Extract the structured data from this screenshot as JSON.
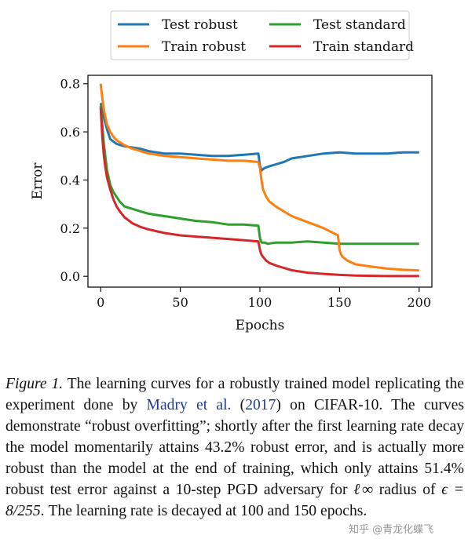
{
  "chart_data": {
    "type": "line",
    "xlabel": "Epochs",
    "ylabel": "Error",
    "xlim": [
      -8,
      208
    ],
    "ylim": [
      -0.045,
      0.835
    ],
    "xticks": [
      0,
      50,
      100,
      150,
      200
    ],
    "yticks": [
      0.0,
      0.2,
      0.4,
      0.6,
      0.8
    ],
    "xtick_labels": [
      "0",
      "50",
      "100",
      "150",
      "200"
    ],
    "ytick_labels": [
      "0.0",
      "0.2",
      "0.4",
      "0.6",
      "0.8"
    ],
    "grid": false,
    "legend": {
      "placement": "top-center-outside",
      "columns": 2
    },
    "series": [
      {
        "name": "Test robust",
        "color": "#1f77b4",
        "x": [
          0,
          2,
          4,
          6,
          8,
          10,
          15,
          20,
          25,
          30,
          35,
          40,
          45,
          50,
          60,
          70,
          80,
          90,
          99,
          100,
          101,
          103,
          105,
          110,
          115,
          120,
          130,
          140,
          150,
          160,
          170,
          180,
          190,
          200
        ],
        "y": [
          0.72,
          0.66,
          0.61,
          0.57,
          0.56,
          0.55,
          0.54,
          0.535,
          0.53,
          0.52,
          0.515,
          0.51,
          0.51,
          0.51,
          0.505,
          0.5,
          0.5,
          0.505,
          0.51,
          0.46,
          0.44,
          0.45,
          0.455,
          0.465,
          0.475,
          0.49,
          0.5,
          0.51,
          0.515,
          0.51,
          0.51,
          0.51,
          0.515,
          0.515
        ]
      },
      {
        "name": "Test standard",
        "color": "#2ca02c",
        "x": [
          0,
          2,
          4,
          6,
          8,
          10,
          12,
          15,
          20,
          25,
          30,
          35,
          40,
          45,
          50,
          60,
          70,
          80,
          90,
          99,
          100,
          101,
          103,
          105,
          110,
          120,
          130,
          140,
          150,
          160,
          170,
          180,
          190,
          200
        ],
        "y": [
          0.71,
          0.55,
          0.44,
          0.38,
          0.35,
          0.33,
          0.31,
          0.29,
          0.28,
          0.27,
          0.26,
          0.255,
          0.25,
          0.245,
          0.24,
          0.23,
          0.225,
          0.215,
          0.215,
          0.21,
          0.16,
          0.14,
          0.14,
          0.135,
          0.14,
          0.14,
          0.145,
          0.14,
          0.135,
          0.135,
          0.135,
          0.135,
          0.135,
          0.135
        ]
      },
      {
        "name": "Train robust",
        "color": "#ff7f0e",
        "x": [
          0,
          1,
          2,
          4,
          6,
          8,
          10,
          15,
          20,
          25,
          30,
          40,
          50,
          60,
          70,
          80,
          90,
          99,
          100,
          101,
          102,
          104,
          106,
          110,
          115,
          120,
          130,
          140,
          149,
          150,
          151,
          152,
          155,
          160,
          170,
          180,
          190,
          200
        ],
        "y": [
          0.8,
          0.74,
          0.69,
          0.63,
          0.6,
          0.58,
          0.565,
          0.545,
          0.53,
          0.52,
          0.51,
          0.5,
          0.495,
          0.49,
          0.485,
          0.48,
          0.48,
          0.475,
          0.45,
          0.4,
          0.36,
          0.33,
          0.31,
          0.29,
          0.27,
          0.25,
          0.225,
          0.2,
          0.17,
          0.11,
          0.09,
          0.08,
          0.065,
          0.05,
          0.04,
          0.032,
          0.027,
          0.024
        ]
      },
      {
        "name": "Train standard",
        "color": "#d62728",
        "x": [
          0,
          1,
          2,
          3,
          4,
          6,
          8,
          10,
          12,
          15,
          20,
          25,
          30,
          40,
          50,
          60,
          70,
          80,
          90,
          99,
          100,
          101,
          102,
          104,
          106,
          110,
          115,
          120,
          130,
          140,
          150,
          160,
          170,
          180,
          190,
          200
        ],
        "y": [
          0.7,
          0.58,
          0.5,
          0.45,
          0.41,
          0.36,
          0.32,
          0.29,
          0.27,
          0.245,
          0.22,
          0.205,
          0.195,
          0.18,
          0.17,
          0.165,
          0.16,
          0.155,
          0.15,
          0.145,
          0.11,
          0.09,
          0.08,
          0.065,
          0.055,
          0.045,
          0.035,
          0.025,
          0.015,
          0.01,
          0.006,
          0.003,
          0.002,
          0.001,
          0.001,
          0.001
        ]
      }
    ]
  },
  "caption": {
    "label": "Figure 1.",
    "text_1": " The learning curves for a robustly trained model replicating the experiment done by ",
    "cite_author": "Madry et al.",
    "cite_open": " (",
    "cite_year": "2017",
    "cite_close": ")",
    "text_2": " on CIFAR-10. The curves demonstrate “robust overfitting”; shortly after the first learning rate decay the model momentarily attains 43.2% robust error, and is actually more robust than the model at the end of training, which only attains 51.4% robust test error against a 10-step PGD adversary for ",
    "math_linf": "ℓ∞",
    "text_3": " radius of ",
    "math_eps": "ϵ = 8/255",
    "text_4": ". The learning rate is decayed at 100 and 150 epochs."
  },
  "watermark": "知乎 @青龙化蝶飞"
}
